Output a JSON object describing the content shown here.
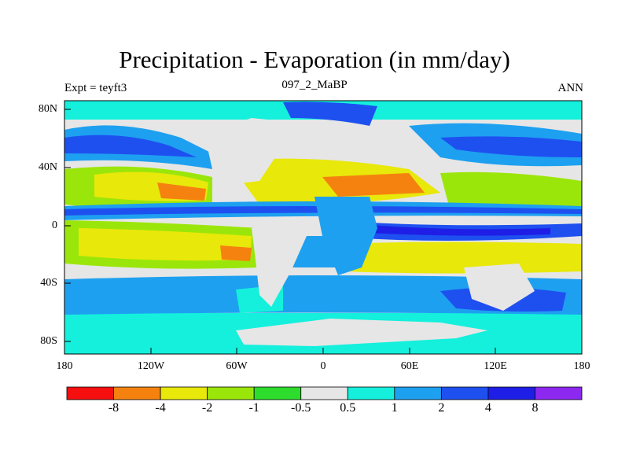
{
  "title": "Precipitation - Evaporation (in mm/day)",
  "subtitle_left": "Expt = teyft3",
  "subtitle_center": "097_2_MaBP",
  "subtitle_right": "ANN",
  "lat_labels": [
    "80N",
    "40N",
    "0",
    "40S",
    "80S"
  ],
  "lon_labels": [
    "180",
    "120W",
    "60W",
    "0",
    "60E",
    "120E",
    "180"
  ],
  "colorbar": {
    "colors": [
      "#f50f0f",
      "#f5820f",
      "#e8e80a",
      "#9be60a",
      "#2ddc2d",
      "#e6e6e6",
      "#14f0dc",
      "#1ea0f0",
      "#1e50f0",
      "#1e1ee6",
      "#8c28f0"
    ],
    "labels": [
      "-8",
      "-4",
      "-2",
      "-1",
      "-0.5",
      "0.5",
      "1",
      "2",
      "4",
      "8"
    ]
  },
  "chart_data": {
    "type": "heatmap",
    "title": "Precipitation - Evaporation (in mm/day)",
    "x_axis": "longitude",
    "y_axis": "latitude",
    "x_ticks": [
      "180",
      "120W",
      "60W",
      "0",
      "60E",
      "120E",
      "180"
    ],
    "y_ticks": [
      "80N",
      "40N",
      "0",
      "40S",
      "80S"
    ],
    "levels": [
      -8,
      -4,
      -2,
      -1,
      -0.5,
      0.5,
      1,
      2,
      4,
      8
    ],
    "units": "mm/day"
  }
}
